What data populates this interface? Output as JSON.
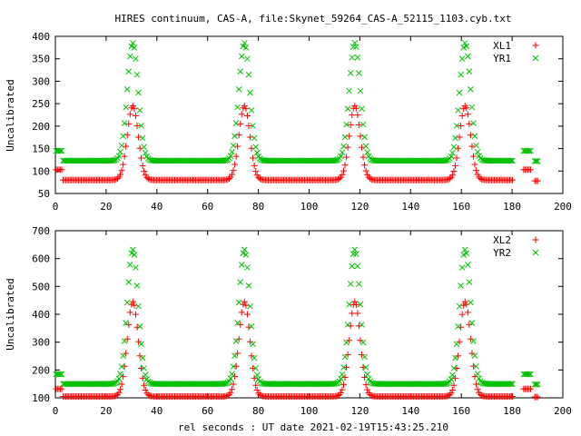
{
  "title": "HIRES continuum, CAS-A, file:Skynet_59264_CAS-A_52115_1103.cyb.txt",
  "xlabel": "rel seconds : UT date 2021-02-19T15:43:25.210",
  "colors": {
    "red": "#ff0000",
    "green": "#00c000"
  },
  "chart_data": [
    {
      "type": "scatter",
      "ylabel": "Uncalibrated",
      "xlim": [
        0,
        200
      ],
      "ylim": [
        50,
        400
      ],
      "xticks": [
        0,
        20,
        40,
        60,
        80,
        100,
        120,
        140,
        160,
        180,
        200
      ],
      "yticks": [
        50,
        100,
        150,
        200,
        250,
        300,
        350,
        400
      ],
      "legend_position": "top-right",
      "peaks_x": [
        30.5,
        74.5,
        118,
        161.5
      ],
      "series": [
        {
          "name": "XL1",
          "marker": "+",
          "color": "red",
          "baseline": 80,
          "peak": 245,
          "edge_level": 103,
          "end_level": 78
        },
        {
          "name": "YR1",
          "marker": "x",
          "color": "green",
          "baseline": 123,
          "peak": 385,
          "edge_level": 145,
          "end_level": 122
        }
      ]
    },
    {
      "type": "scatter",
      "ylabel": "Uncalibrated",
      "xlim": [
        0,
        200
      ],
      "ylim": [
        100,
        700
      ],
      "xticks": [
        0,
        20,
        40,
        60,
        80,
        100,
        120,
        140,
        160,
        180,
        200
      ],
      "yticks": [
        100,
        200,
        300,
        400,
        500,
        600,
        700
      ],
      "legend_position": "top-right",
      "peaks_x": [
        30.5,
        74.5,
        118,
        161.5
      ],
      "series": [
        {
          "name": "XL2",
          "marker": "+",
          "color": "red",
          "baseline": 105,
          "peak": 445,
          "edge_level": 132,
          "end_level": 103
        },
        {
          "name": "YR2",
          "marker": "x",
          "color": "green",
          "baseline": 150,
          "peak": 632,
          "edge_level": 185,
          "end_level": 148
        }
      ]
    }
  ]
}
